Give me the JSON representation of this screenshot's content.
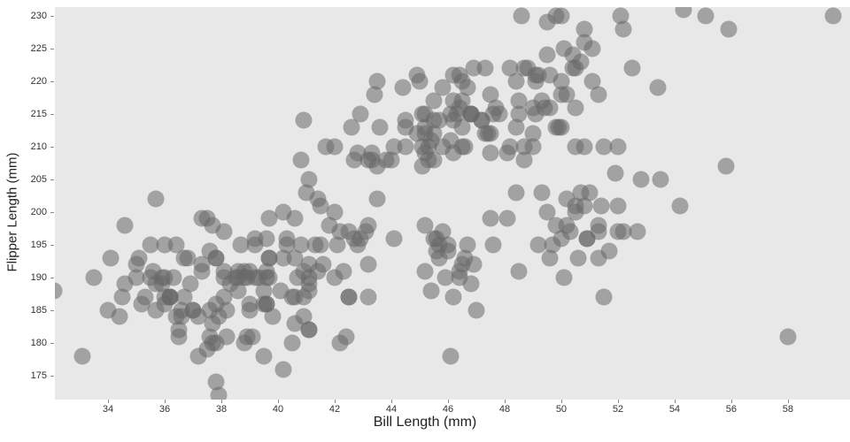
{
  "chart_data": {
    "type": "scatter",
    "title": "",
    "xlabel": "Bill Length (mm)",
    "ylabel": "Flipper Length (mm)",
    "xlim": [
      32.125,
      60.19
    ],
    "ylim": [
      171.35,
      231.35
    ],
    "x_ticks": [
      34,
      36,
      38,
      40,
      42,
      44,
      46,
      48,
      50,
      52,
      54,
      56,
      58
    ],
    "y_ticks": [
      175,
      180,
      185,
      190,
      195,
      200,
      205,
      210,
      215,
      220,
      225,
      230
    ],
    "grid": false,
    "legend": "none",
    "plot_bg_color": "#e8e8e8",
    "marker_color": "#686868",
    "marker_opacity": 0.55,
    "points": [
      [
        39.1,
        181
      ],
      [
        39.5,
        186
      ],
      [
        40.3,
        195
      ],
      [
        36.7,
        193
      ],
      [
        39.3,
        190
      ],
      [
        38.9,
        181
      ],
      [
        39.2,
        195
      ],
      [
        34.1,
        193
      ],
      [
        42,
        190
      ],
      [
        37.8,
        186
      ],
      [
        37.8,
        180
      ],
      [
        41.1,
        182
      ],
      [
        38.6,
        191
      ],
      [
        34.6,
        198
      ],
      [
        36.6,
        185
      ],
      [
        38.7,
        195
      ],
      [
        42.5,
        197
      ],
      [
        34.4,
        184
      ],
      [
        46,
        194
      ],
      [
        37.8,
        174
      ],
      [
        37.7,
        180
      ],
      [
        35.9,
        189
      ],
      [
        38.2,
        185
      ],
      [
        38.8,
        180
      ],
      [
        35.3,
        187
      ],
      [
        40.6,
        183
      ],
      [
        40.5,
        187
      ],
      [
        37.9,
        172
      ],
      [
        40.5,
        180
      ],
      [
        39.5,
        178
      ],
      [
        37.2,
        178
      ],
      [
        39.5,
        188
      ],
      [
        40.9,
        184
      ],
      [
        36.4,
        195
      ],
      [
        39.2,
        196
      ],
      [
        38.8,
        190
      ],
      [
        42.2,
        180
      ],
      [
        37.6,
        181
      ],
      [
        39.8,
        184
      ],
      [
        36.5,
        182
      ],
      [
        40.8,
        195
      ],
      [
        36,
        186
      ],
      [
        44.1,
        196
      ],
      [
        37,
        185
      ],
      [
        39.6,
        190
      ],
      [
        41.1,
        182
      ],
      [
        37.5,
        179
      ],
      [
        36,
        190
      ],
      [
        42.3,
        191
      ],
      [
        39.6,
        186
      ],
      [
        40.1,
        188
      ],
      [
        35,
        190
      ],
      [
        42,
        200
      ],
      [
        34.5,
        187
      ],
      [
        41.4,
        191
      ],
      [
        39,
        186
      ],
      [
        40.6,
        193
      ],
      [
        36.5,
        181
      ],
      [
        37.6,
        194
      ],
      [
        35.7,
        185
      ],
      [
        41.3,
        195
      ],
      [
        37.6,
        185
      ],
      [
        41.1,
        192
      ],
      [
        36.4,
        184
      ],
      [
        41.6,
        192
      ],
      [
        35.5,
        195
      ],
      [
        41.1,
        188
      ],
      [
        35.9,
        190
      ],
      [
        41.8,
        198
      ],
      [
        33.5,
        190
      ],
      [
        39.7,
        190
      ],
      [
        39.6,
        196
      ],
      [
        45.8,
        197
      ],
      [
        35.5,
        190
      ],
      [
        42.8,
        195
      ],
      [
        40.9,
        191
      ],
      [
        37.2,
        184
      ],
      [
        36.2,
        187
      ],
      [
        42.1,
        195
      ],
      [
        34.6,
        189
      ],
      [
        42.9,
        196
      ],
      [
        36.7,
        187
      ],
      [
        35.1,
        193
      ],
      [
        37.3,
        191
      ],
      [
        36.3,
        190
      ],
      [
        36.9,
        189
      ],
      [
        38.3,
        189
      ],
      [
        38.9,
        190
      ],
      [
        35.7,
        202
      ],
      [
        41.1,
        205
      ],
      [
        34,
        185
      ],
      [
        39.6,
        186
      ],
      [
        36.2,
        187
      ],
      [
        40.8,
        208
      ],
      [
        38.1,
        190
      ],
      [
        40.3,
        196
      ],
      [
        33.1,
        178
      ],
      [
        43.2,
        192
      ],
      [
        35,
        192
      ],
      [
        41,
        203
      ],
      [
        37.7,
        183
      ],
      [
        37.8,
        193
      ],
      [
        37.9,
        184
      ],
      [
        39.7,
        199
      ],
      [
        38.6,
        190
      ],
      [
        38.2,
        181
      ],
      [
        38.1,
        197
      ],
      [
        43.2,
        198
      ],
      [
        38.1,
        191
      ],
      [
        45.6,
        196
      ],
      [
        39.7,
        193
      ],
      [
        42.2,
        197
      ],
      [
        39.6,
        191
      ],
      [
        42.7,
        196
      ],
      [
        38.6,
        188
      ],
      [
        37.3,
        199
      ],
      [
        35.7,
        189
      ],
      [
        41.1,
        189
      ],
      [
        36.2,
        187
      ],
      [
        37.7,
        198
      ],
      [
        40.2,
        176
      ],
      [
        41.4,
        202
      ],
      [
        35.2,
        186
      ],
      [
        40.6,
        199
      ],
      [
        38.8,
        191
      ],
      [
        41.5,
        195
      ],
      [
        39,
        191
      ],
      [
        44.1,
        210
      ],
      [
        38.5,
        190
      ],
      [
        43.1,
        197
      ],
      [
        36.8,
        193
      ],
      [
        37.5,
        199
      ],
      [
        38.1,
        187
      ],
      [
        41.1,
        190
      ],
      [
        35.6,
        191
      ],
      [
        40.2,
        200
      ],
      [
        37,
        185
      ],
      [
        39.7,
        193
      ],
      [
        40.2,
        193
      ],
      [
        40.6,
        187
      ],
      [
        32.1,
        188
      ],
      [
        40.7,
        190
      ],
      [
        37.3,
        192
      ],
      [
        39,
        185
      ],
      [
        39.2,
        190
      ],
      [
        36.6,
        184
      ],
      [
        36,
        195
      ],
      [
        37.8,
        193
      ],
      [
        36,
        187
      ],
      [
        41.5,
        201
      ],
      [
        46.1,
        211
      ],
      [
        50,
        230
      ],
      [
        48.7,
        210
      ],
      [
        50,
        218
      ],
      [
        47.6,
        215
      ],
      [
        46.5,
        210
      ],
      [
        45.4,
        211
      ],
      [
        46.7,
        219
      ],
      [
        43.3,
        209
      ],
      [
        46.8,
        215
      ],
      [
        40.9,
        214
      ],
      [
        49,
        216
      ],
      [
        45.5,
        214
      ],
      [
        48.4,
        213
      ],
      [
        45.8,
        210
      ],
      [
        49.3,
        217
      ],
      [
        42,
        210
      ],
      [
        49.2,
        221
      ],
      [
        46.2,
        209
      ],
      [
        48.7,
        222
      ],
      [
        50.2,
        218
      ],
      [
        45.1,
        215
      ],
      [
        46.5,
        213
      ],
      [
        46.3,
        215
      ],
      [
        42.9,
        215
      ],
      [
        46.1,
        215
      ],
      [
        44.5,
        213
      ],
      [
        47.8,
        215
      ],
      [
        48.2,
        210
      ],
      [
        50,
        220
      ],
      [
        47.3,
        222
      ],
      [
        42.8,
        209
      ],
      [
        45.1,
        207
      ],
      [
        59.6,
        230
      ],
      [
        49.1,
        220
      ],
      [
        48.4,
        220
      ],
      [
        42.6,
        213
      ],
      [
        44.4,
        219
      ],
      [
        44,
        208
      ],
      [
        48.7,
        208
      ],
      [
        42.7,
        208
      ],
      [
        49.6,
        221
      ],
      [
        45.3,
        210
      ],
      [
        49.6,
        216
      ],
      [
        50.5,
        222
      ],
      [
        43.6,
        213
      ],
      [
        45.5,
        217
      ],
      [
        50.5,
        210
      ],
      [
        44.9,
        221
      ],
      [
        45.2,
        209
      ],
      [
        46.6,
        210
      ],
      [
        48.5,
        215
      ],
      [
        45.1,
        210
      ],
      [
        50.1,
        225
      ],
      [
        46.5,
        220
      ],
      [
        45,
        220
      ],
      [
        43.8,
        208
      ],
      [
        45.5,
        208
      ],
      [
        43.2,
        208
      ],
      [
        50.4,
        224
      ],
      [
        45.3,
        208
      ],
      [
        46.2,
        221
      ],
      [
        45.7,
        214
      ],
      [
        54.3,
        231
      ],
      [
        45.8,
        219
      ],
      [
        49.8,
        230
      ],
      [
        46.2,
        214
      ],
      [
        49.5,
        229
      ],
      [
        43.5,
        220
      ],
      [
        50.7,
        223
      ],
      [
        47.7,
        216
      ],
      [
        46.4,
        221
      ],
      [
        48.2,
        222
      ],
      [
        46.5,
        217
      ],
      [
        46.4,
        216
      ],
      [
        48.6,
        230
      ],
      [
        47.5,
        209
      ],
      [
        51.1,
        220
      ],
      [
        45.2,
        215
      ],
      [
        45.2,
        213
      ],
      [
        49.1,
        215
      ],
      [
        52.5,
        222
      ],
      [
        47.4,
        212
      ],
      [
        50,
        213
      ],
      [
        44.9,
        212
      ],
      [
        50.8,
        228
      ],
      [
        43.4,
        218
      ],
      [
        51.3,
        218
      ],
      [
        47.5,
        212
      ],
      [
        52.1,
        230
      ],
      [
        47.5,
        218
      ],
      [
        52.2,
        228
      ],
      [
        45.5,
        212
      ],
      [
        49.5,
        224
      ],
      [
        44.5,
        214
      ],
      [
        50.8,
        226
      ],
      [
        49.4,
        216
      ],
      [
        46.9,
        222
      ],
      [
        48.4,
        203
      ],
      [
        51.1,
        225
      ],
      [
        48.5,
        217
      ],
      [
        55.9,
        228
      ],
      [
        47.2,
        214
      ],
      [
        49.1,
        221
      ],
      [
        47.3,
        212
      ],
      [
        46.8,
        215
      ],
      [
        41.7,
        210
      ],
      [
        53.4,
        219
      ],
      [
        43.3,
        208
      ],
      [
        48.1,
        209
      ],
      [
        50.5,
        216
      ],
      [
        49.8,
        213
      ],
      [
        43.5,
        207
      ],
      [
        51.5,
        210
      ],
      [
        46.2,
        217
      ],
      [
        55.1,
        230
      ],
      [
        44.5,
        210
      ],
      [
        48.8,
        222
      ],
      [
        47.2,
        214
      ],
      [
        46.8,
        215
      ],
      [
        50.4,
        222
      ],
      [
        45.2,
        212
      ],
      [
        49.9,
        213
      ],
      [
        46.5,
        192
      ],
      [
        50,
        196
      ],
      [
        51.3,
        193
      ],
      [
        45.4,
        188
      ],
      [
        52.7,
        197
      ],
      [
        45.2,
        198
      ],
      [
        46.1,
        178
      ],
      [
        51.3,
        197
      ],
      [
        46,
        195
      ],
      [
        51.3,
        198
      ],
      [
        46.6,
        193
      ],
      [
        51.7,
        194
      ],
      [
        47,
        185
      ],
      [
        52,
        201
      ],
      [
        45.9,
        190
      ],
      [
        50.5,
        201
      ],
      [
        50.3,
        197
      ],
      [
        58,
        181
      ],
      [
        46.4,
        190
      ],
      [
        49.2,
        195
      ],
      [
        42.4,
        181
      ],
      [
        48.5,
        191
      ],
      [
        43.2,
        187
      ],
      [
        50.6,
        193
      ],
      [
        46.7,
        195
      ],
      [
        52,
        197
      ],
      [
        50.5,
        200
      ],
      [
        49.5,
        200
      ],
      [
        46.4,
        191
      ],
      [
        52.8,
        205
      ],
      [
        40.9,
        187
      ],
      [
        54.2,
        201
      ],
      [
        42.5,
        187
      ],
      [
        51,
        203
      ],
      [
        49.7,
        195
      ],
      [
        47.5,
        199
      ],
      [
        47.6,
        195
      ],
      [
        52,
        210
      ],
      [
        46.9,
        192
      ],
      [
        53.5,
        205
      ],
      [
        49,
        210
      ],
      [
        46.2,
        187
      ],
      [
        50.9,
        196
      ],
      [
        45.5,
        196
      ],
      [
        50.9,
        196
      ],
      [
        50.8,
        201
      ],
      [
        50.1,
        190
      ],
      [
        49,
        212
      ],
      [
        51.5,
        187
      ],
      [
        49.8,
        198
      ],
      [
        48.1,
        199
      ],
      [
        51.4,
        201
      ],
      [
        45.7,
        193
      ],
      [
        50.7,
        203
      ],
      [
        42.5,
        187
      ],
      [
        52.2,
        197
      ],
      [
        45.2,
        191
      ],
      [
        49.3,
        203
      ],
      [
        50.2,
        202
      ],
      [
        45.6,
        194
      ],
      [
        51.9,
        206
      ],
      [
        46.8,
        189
      ],
      [
        45.7,
        195
      ],
      [
        55.8,
        207
      ],
      [
        43.5,
        202
      ],
      [
        49.6,
        193
      ],
      [
        50.8,
        210
      ],
      [
        50.2,
        198
      ]
    ]
  }
}
